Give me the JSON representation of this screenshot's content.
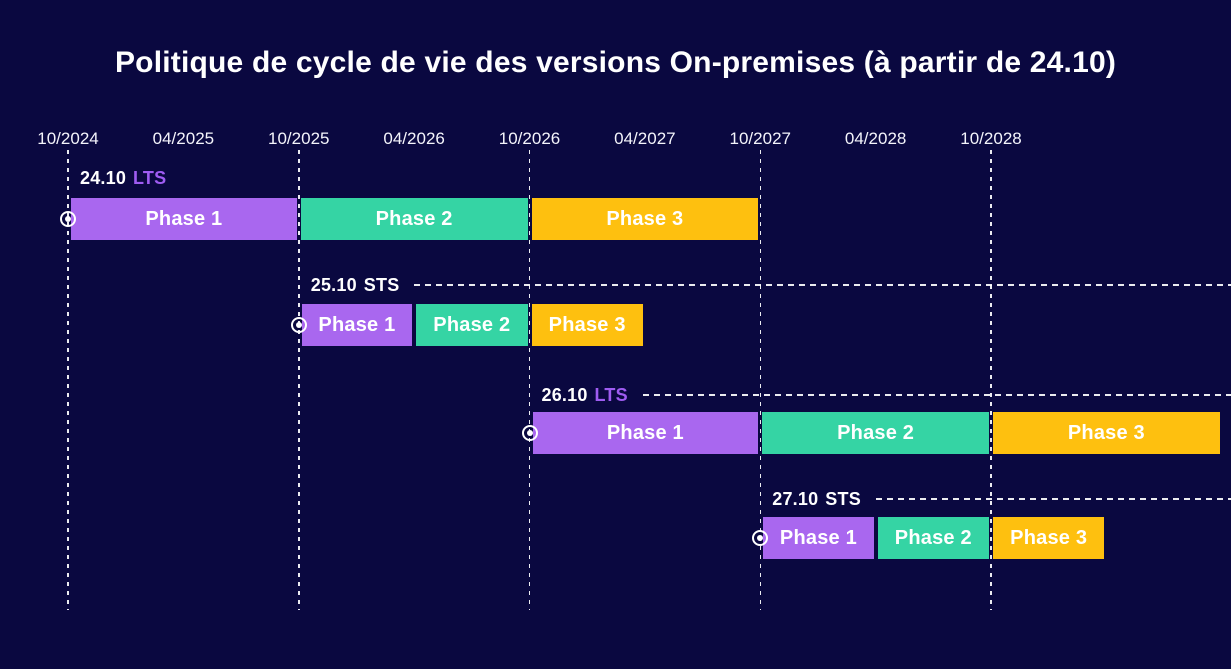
{
  "title": "Politique de cycle de vie des versions On-premises (à partir de 24.10)",
  "colors": {
    "background": "#0a0840",
    "grid": "#ffffff",
    "text": "#ffffff",
    "lts_label": "#9f5cf2",
    "sts_label": "#ffffff",
    "phase1": "#a967ef",
    "phase2": "#35d4a4",
    "phase3": "#fec00f"
  },
  "axis": {
    "ticks": [
      "10/2024",
      "04/2025",
      "10/2025",
      "04/2026",
      "10/2026",
      "04/2027",
      "10/2027",
      "04/2028",
      "10/2028"
    ],
    "gridlines": [
      "10/2024",
      "10/2025",
      "10/2026",
      "10/2027",
      "10/2028"
    ]
  },
  "chart_data": {
    "type": "gantt",
    "title": "Politique de cycle de vie des versions On-premises (à partir de 24.10)",
    "x_ticks": [
      "10/2024",
      "04/2025",
      "10/2025",
      "04/2026",
      "10/2026",
      "04/2027",
      "10/2027",
      "04/2028",
      "10/2028"
    ],
    "gridlines_at": [
      "10/2024",
      "10/2025",
      "10/2026",
      "10/2027",
      "10/2028"
    ],
    "legend_position": "none",
    "series": [
      {
        "version": "24.10",
        "type": "LTS",
        "has_trailing_line": false,
        "phases": [
          {
            "label": "Phase 1",
            "start": "10/2024",
            "end": "10/2025",
            "color_key": "phase1"
          },
          {
            "label": "Phase 2",
            "start": "10/2025",
            "end": "10/2026",
            "color_key": "phase2"
          },
          {
            "label": "Phase 3",
            "start": "10/2026",
            "end": "10/2027",
            "color_key": "phase3"
          }
        ]
      },
      {
        "version": "25.10",
        "type": "STS",
        "has_trailing_line": true,
        "phases": [
          {
            "label": "Phase 1",
            "start": "10/2025",
            "end": "04/2026",
            "color_key": "phase1"
          },
          {
            "label": "Phase 2",
            "start": "04/2026",
            "end": "10/2026",
            "color_key": "phase2"
          },
          {
            "label": "Phase 3",
            "start": "10/2026",
            "end": "04/2027",
            "color_key": "phase3"
          }
        ]
      },
      {
        "version": "26.10",
        "type": "LTS",
        "has_trailing_line": true,
        "phases": [
          {
            "label": "Phase 1",
            "start": "10/2026",
            "end": "10/2027",
            "color_key": "phase1"
          },
          {
            "label": "Phase 2",
            "start": "10/2027",
            "end": "10/2028",
            "color_key": "phase2"
          },
          {
            "label": "Phase 3",
            "start": "10/2028",
            "end": "10/2029",
            "color_key": "phase3"
          }
        ]
      },
      {
        "version": "27.10",
        "type": "STS",
        "has_trailing_line": true,
        "phases": [
          {
            "label": "Phase 1",
            "start": "10/2027",
            "end": "04/2028",
            "color_key": "phase1"
          },
          {
            "label": "Phase 2",
            "start": "04/2028",
            "end": "10/2028",
            "color_key": "phase2"
          },
          {
            "label": "Phase 3",
            "start": "10/2028",
            "end": "04/2029",
            "color_key": "phase3"
          }
        ]
      }
    ]
  }
}
